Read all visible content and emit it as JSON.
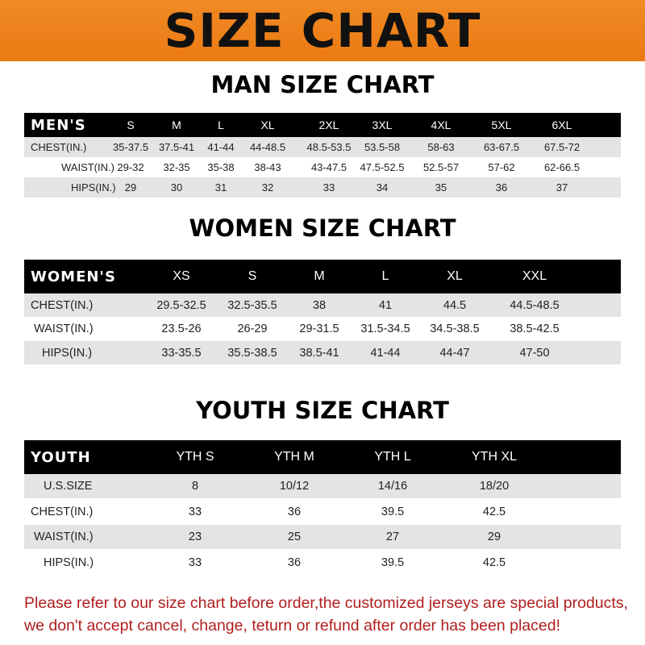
{
  "banner": "SIZE CHART",
  "men": {
    "title": "MAN SIZE CHART",
    "header": "MEN'S",
    "sizes": [
      "S",
      "M",
      "L",
      "XL",
      "2XL",
      "3XL",
      "4XL",
      "5XL",
      "6XL"
    ],
    "rows": [
      {
        "label": "CHEST(IN.)",
        "values": [
          "35-37.5",
          "37.5-41",
          "41-44",
          "44-48.5",
          "48.5-53.5",
          "53.5-58",
          "58-63",
          "63-67.5",
          "67.5-72"
        ]
      },
      {
        "label": "WAIST(IN.)",
        "values": [
          "29-32",
          "32-35",
          "35-38",
          "38-43",
          "43-47.5",
          "47.5-52.5",
          "52.5-57",
          "57-62",
          "62-66.5"
        ]
      },
      {
        "label": "HIPS(IN.)",
        "values": [
          "29",
          "30",
          "31",
          "32",
          "33",
          "34",
          "35",
          "36",
          "37"
        ]
      }
    ]
  },
  "women": {
    "title": "WOMEN SIZE CHART",
    "header": "WOMEN'S",
    "sizes": [
      "XS",
      "S",
      "M",
      "L",
      "XL",
      "XXL"
    ],
    "rows": [
      {
        "label": "CHEST(IN.)",
        "values": [
          "29.5-32.5",
          "32.5-35.5",
          "38",
          "41",
          "44.5",
          "44.5-48.5"
        ]
      },
      {
        "label": "WAIST(IN.)",
        "values": [
          "23.5-26",
          "26-29",
          "29-31.5",
          "31.5-34.5",
          "34.5-38.5",
          "38.5-42.5"
        ]
      },
      {
        "label": "HIPS(IN.)",
        "values": [
          "33-35.5",
          "35.5-38.5",
          "38.5-41",
          "41-44",
          "44-47",
          "47-50"
        ]
      }
    ]
  },
  "youth": {
    "title": "YOUTH SIZE CHART",
    "header": "YOUTH",
    "sizes": [
      "YTH S",
      "YTH M",
      "YTH L",
      "YTH XL"
    ],
    "rows": [
      {
        "label": "U.S.SIZE",
        "values": [
          "8",
          "10/12",
          "14/16",
          "18/20"
        ]
      },
      {
        "label": "CHEST(IN.)",
        "values": [
          "33",
          "36",
          "39.5",
          "42.5"
        ]
      },
      {
        "label": "WAIST(IN.)",
        "values": [
          "23",
          "25",
          "27",
          "29"
        ]
      },
      {
        "label": "HIPS(IN.)",
        "values": [
          "33",
          "36",
          "39.5",
          "42.5"
        ]
      }
    ]
  },
  "notice": [
    "Please refer to our size chart before order,the customized jerseys are special products,",
    "we don't accept cancel, change, teturn or refund after order has been placed!"
  ]
}
